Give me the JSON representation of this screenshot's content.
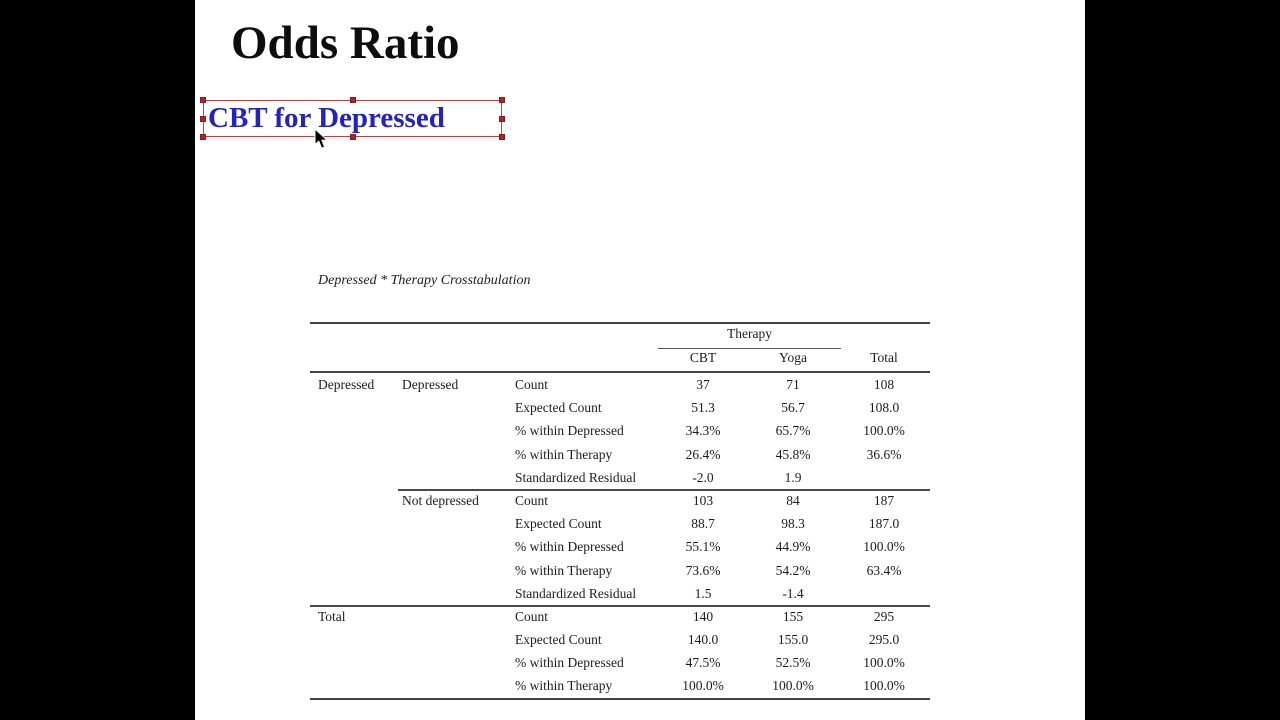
{
  "colors": {
    "letterbox": "#000000",
    "slide_background": "#ffffff",
    "title_text": "#0d0d0d",
    "textbox_text": "#2323c1",
    "selection_border": "#c24040",
    "selection_handle": "#b02323",
    "table_text": "#1c1c1c",
    "table_rule": "#454545"
  },
  "slide": {
    "title": "Odds Ratio"
  },
  "textbox": {
    "text": "CBT for Depressed"
  },
  "icons": {
    "cursor": "mouse-arrow-pointer",
    "selection_handles": "resize-handle-squares"
  },
  "spss": {
    "caption": "Depressed * Therapy Crosstabulation",
    "group_header": "Therapy",
    "col_headers": [
      "CBT",
      "Yoga",
      "Total"
    ],
    "row_group_labels": [
      "Depressed",
      "Total"
    ],
    "rows": [
      {
        "cells": [
          "Depressed",
          "Depressed",
          "Count",
          "37",
          "71",
          "108"
        ]
      },
      {
        "cells": [
          "",
          "",
          "Expected Count",
          "51.3",
          "56.7",
          "108.0"
        ]
      },
      {
        "cells": [
          "",
          "",
          "% within Depressed",
          "34.3%",
          "65.7%",
          "100.0%"
        ]
      },
      {
        "cells": [
          "",
          "",
          "% within Therapy",
          "26.4%",
          "45.8%",
          "36.6%"
        ]
      },
      {
        "cells": [
          "",
          "",
          "Standardized Residual",
          "-2.0",
          "1.9",
          ""
        ]
      },
      {
        "cells": [
          "",
          "Not depressed",
          "Count",
          "103",
          "84",
          "187"
        ],
        "divider_before": "partial"
      },
      {
        "cells": [
          "",
          "",
          "Expected Count",
          "88.7",
          "98.3",
          "187.0"
        ]
      },
      {
        "cells": [
          "",
          "",
          "% within Depressed",
          "55.1%",
          "44.9%",
          "100.0%"
        ]
      },
      {
        "cells": [
          "",
          "",
          "% within Therapy",
          "73.6%",
          "54.2%",
          "63.4%"
        ]
      },
      {
        "cells": [
          "",
          "",
          "Standardized Residual",
          "1.5",
          "-1.4",
          ""
        ]
      },
      {
        "cells": [
          "Total",
          "",
          "Count",
          "140",
          "155",
          "295"
        ],
        "divider_before": "full"
      },
      {
        "cells": [
          "",
          "",
          "Expected Count",
          "140.0",
          "155.0",
          "295.0"
        ]
      },
      {
        "cells": [
          "",
          "",
          "% within Depressed",
          "47.5%",
          "52.5%",
          "100.0%"
        ]
      },
      {
        "cells": [
          "",
          "",
          "% within Therapy",
          "100.0%",
          "100.0%",
          "100.0%"
        ]
      }
    ]
  }
}
